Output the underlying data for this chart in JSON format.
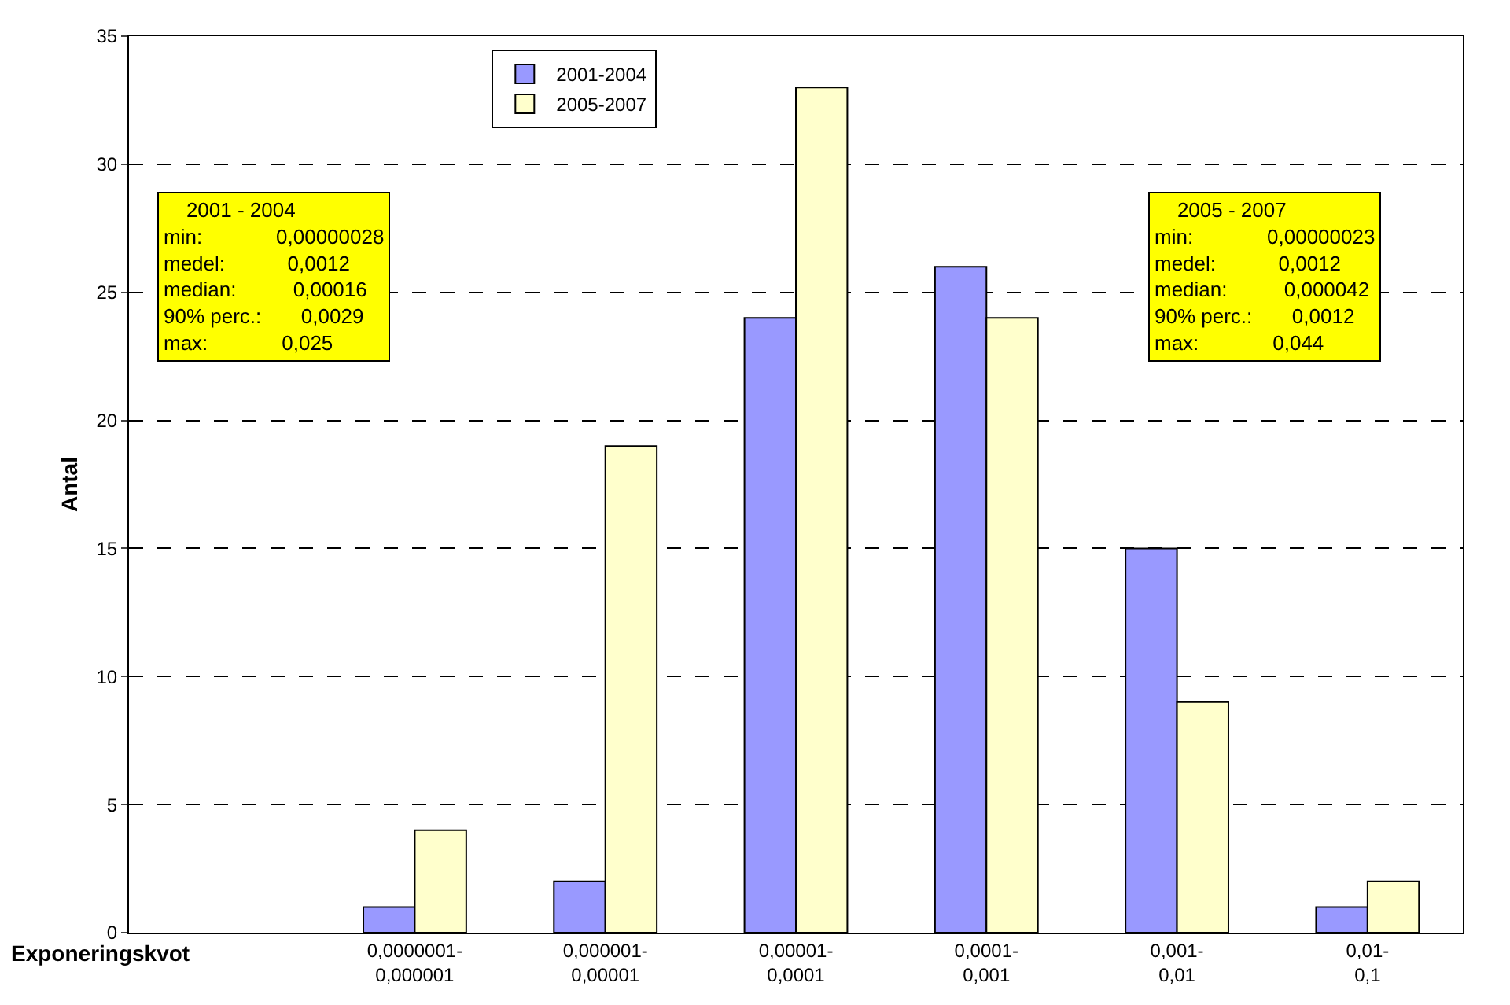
{
  "chart_data": {
    "type": "bar",
    "xlabel": "Exponeringskvot",
    "ylabel": "Antal",
    "categories": [
      null,
      "0,0000001-\n0,000001",
      "0,000001-\n0,00001",
      "0,00001-\n0,0001",
      "0,0001-\n0,001",
      "0,001-\n0,01",
      "0,01-\n0,1"
    ],
    "series": [
      {
        "name": "2001-2004",
        "color": "#9999ff",
        "values": [
          null,
          1,
          2,
          24,
          26,
          15,
          1
        ]
      },
      {
        "name": "2005-2007",
        "color": "#ffffcc",
        "values": [
          null,
          4,
          19,
          33,
          24,
          9,
          2
        ]
      }
    ],
    "ylim": [
      0,
      35
    ],
    "yticks": [
      0,
      5,
      10,
      15,
      20,
      25,
      30,
      35
    ],
    "grid": "y",
    "legend": "top",
    "annotations": [
      "2001 - 2004\nmin:\t0,00000028\nmedel:\t0,0012\nmedian:\t0,00016\n90% perc.:\t0,0029\nmax:\t0,025",
      "2005 - 2007\nmin:\t0,00000023\nmedel:\t0,0012\nmedian:\t0,000042\n90% perc.:\t0,0012\nmax:\t0,044"
    ]
  }
}
